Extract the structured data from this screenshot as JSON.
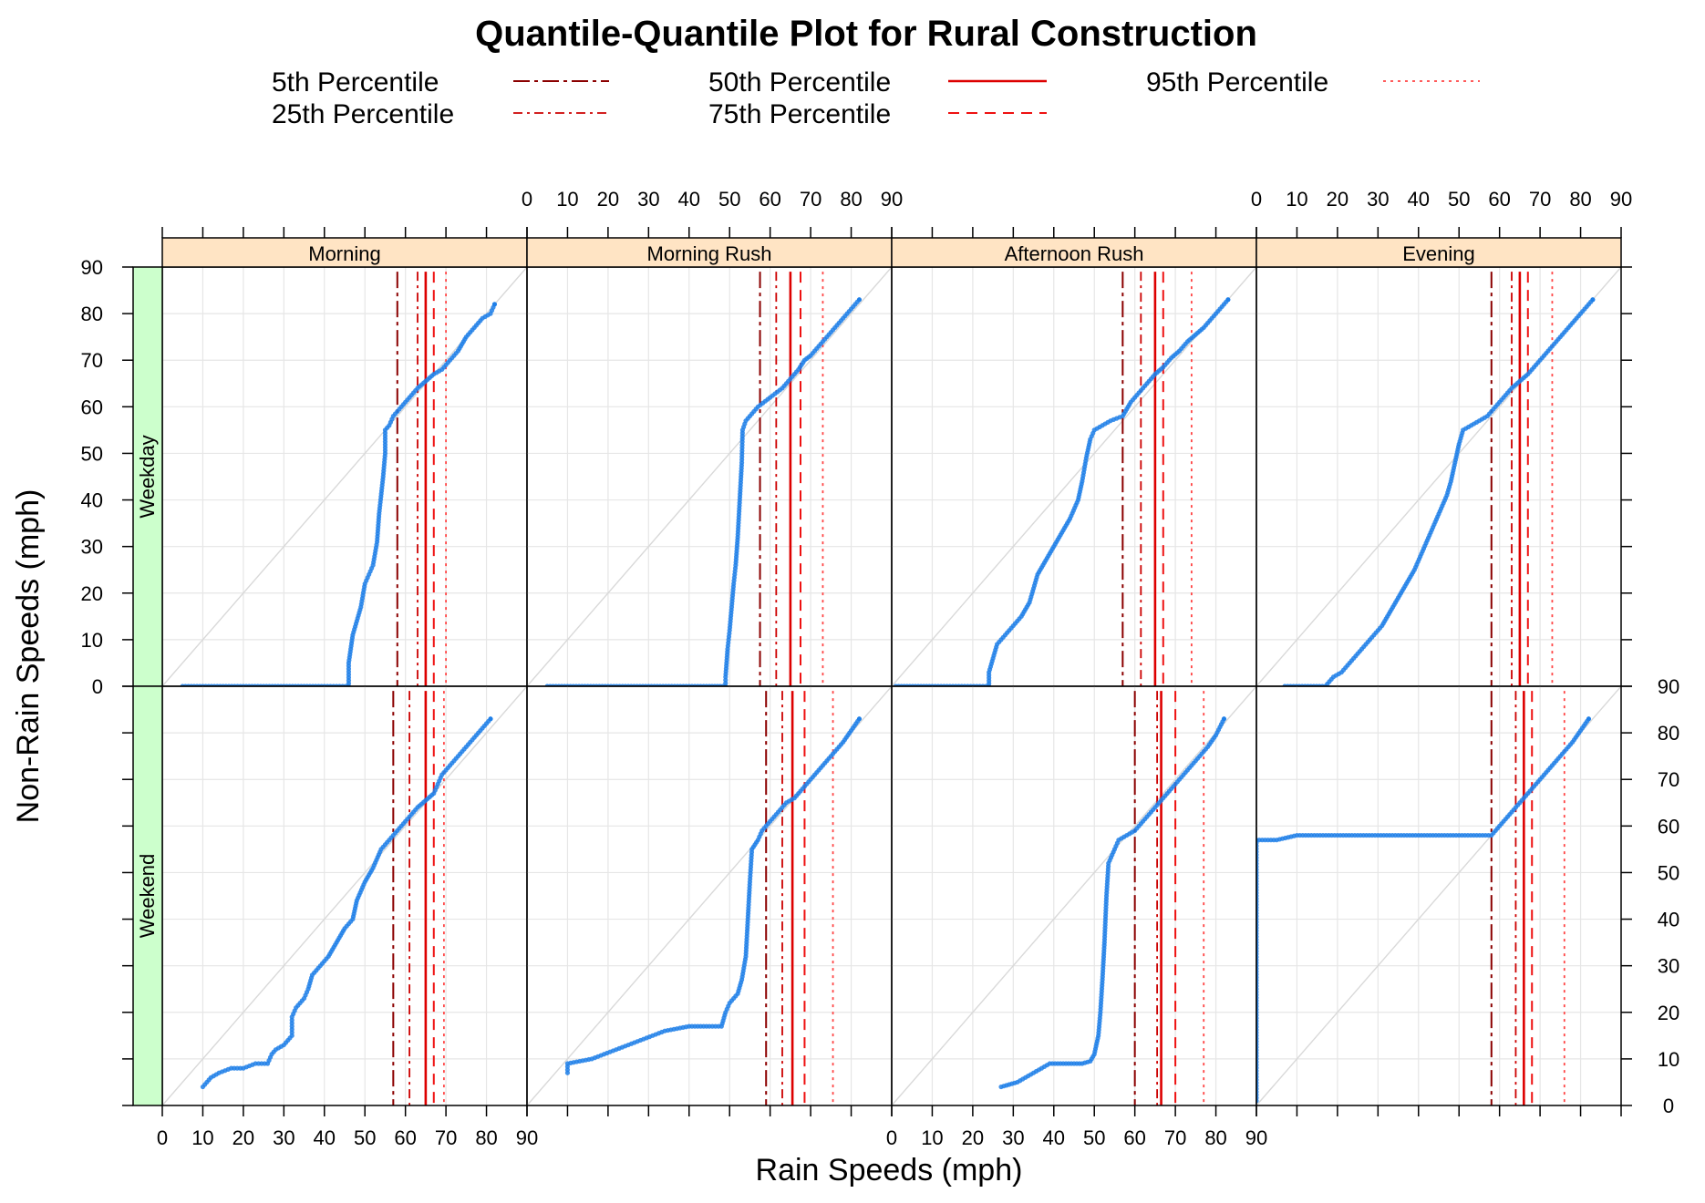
{
  "chart_data": {
    "type": "scatter",
    "title": "Quantile-Quantile Plot for Rural Construction",
    "xlabel": "Rain Speeds (mph)",
    "ylabel": "Non-Rain Speeds (mph)",
    "xlim": [
      0,
      90
    ],
    "ylim": [
      0,
      90
    ],
    "ticks": [
      0,
      10,
      20,
      30,
      40,
      50,
      60,
      70,
      80,
      90
    ],
    "grid": true,
    "reference_line": "y = x",
    "colors": {
      "points": "#1E7FE8",
      "percentile_lines": "#CC0000",
      "strip_column": "#FFE4C4",
      "strip_row": "#CCFFCC",
      "grid": "#E6E6E6",
      "diagonal": "#D9D9D9"
    },
    "legend": {
      "position": "top",
      "entries": [
        {
          "label": "5th Percentile",
          "style": "dashdot-long",
          "color": "#8B0000"
        },
        {
          "label": "25th Percentile",
          "style": "dashdot",
          "color": "#CC0000"
        },
        {
          "label": "50th Percentile",
          "style": "solid",
          "color": "#DD0000"
        },
        {
          "label": "75th Percentile",
          "style": "dashed",
          "color": "#EE1111"
        },
        {
          "label": "95th Percentile",
          "style": "dotted",
          "color": "#FF4444"
        }
      ]
    },
    "columns": [
      "Morning",
      "Morning Rush",
      "Afternoon Rush",
      "Evening"
    ],
    "rows": [
      "Weekday",
      "Weekend"
    ],
    "panels": [
      {
        "column": "Morning",
        "row": "Weekday",
        "percentiles": [
          58,
          63,
          65,
          67,
          70
        ],
        "points": [
          [
            5,
            0
          ],
          [
            10,
            0
          ],
          [
            15,
            0
          ],
          [
            20,
            0
          ],
          [
            25,
            0
          ],
          [
            30,
            0
          ],
          [
            35,
            0
          ],
          [
            40,
            0
          ],
          [
            46,
            0
          ],
          [
            46,
            5
          ],
          [
            46.5,
            8
          ],
          [
            47,
            11
          ],
          [
            48,
            14
          ],
          [
            49,
            17
          ],
          [
            50,
            22
          ],
          [
            51,
            24
          ],
          [
            52,
            26
          ],
          [
            53,
            31
          ],
          [
            53.5,
            37
          ],
          [
            54.5,
            45
          ],
          [
            55,
            50
          ],
          [
            55,
            55
          ],
          [
            56,
            56
          ],
          [
            57,
            58
          ],
          [
            59,
            60
          ],
          [
            61,
            62
          ],
          [
            63,
            64
          ],
          [
            65,
            65.5
          ],
          [
            67,
            67
          ],
          [
            69,
            68
          ],
          [
            71,
            70
          ],
          [
            73,
            72
          ],
          [
            75,
            75
          ],
          [
            77,
            77
          ],
          [
            79,
            79
          ],
          [
            81,
            80
          ],
          [
            82,
            82
          ]
        ]
      },
      {
        "column": "Morning Rush",
        "row": "Weekday",
        "percentiles": [
          57.5,
          61.5,
          65,
          67.5,
          73
        ],
        "points": [
          [
            5,
            0
          ],
          [
            15,
            0
          ],
          [
            25,
            0
          ],
          [
            35,
            0
          ],
          [
            45,
            0
          ],
          [
            49,
            0
          ],
          [
            49,
            2
          ],
          [
            49.5,
            8
          ],
          [
            50,
            12
          ],
          [
            50.5,
            17
          ],
          [
            51,
            22
          ],
          [
            51.5,
            26
          ],
          [
            52,
            32
          ],
          [
            52.5,
            40
          ],
          [
            53,
            48
          ],
          [
            53.2,
            55
          ],
          [
            54,
            57
          ],
          [
            55,
            58
          ],
          [
            57,
            60
          ],
          [
            60,
            62
          ],
          [
            63,
            64
          ],
          [
            65,
            66
          ],
          [
            67,
            68
          ],
          [
            68.5,
            70
          ],
          [
            70,
            71
          ],
          [
            72,
            73
          ],
          [
            74,
            75
          ],
          [
            76,
            77
          ],
          [
            78,
            79
          ],
          [
            80,
            81
          ],
          [
            82,
            83
          ]
        ]
      },
      {
        "column": "Afternoon Rush",
        "row": "Weekday",
        "percentiles": [
          57,
          61.5,
          65,
          67,
          74
        ],
        "points": [
          [
            1,
            0
          ],
          [
            10,
            0
          ],
          [
            18,
            0
          ],
          [
            24,
            0
          ],
          [
            24,
            3
          ],
          [
            25,
            6
          ],
          [
            26,
            9
          ],
          [
            28,
            11
          ],
          [
            30,
            13
          ],
          [
            32,
            15
          ],
          [
            34,
            18
          ],
          [
            35,
            21
          ],
          [
            36,
            24
          ],
          [
            38,
            27
          ],
          [
            40,
            30
          ],
          [
            42,
            33
          ],
          [
            44,
            36
          ],
          [
            46,
            40
          ],
          [
            47,
            44
          ],
          [
            48,
            49
          ],
          [
            49,
            53
          ],
          [
            50,
            55
          ],
          [
            52,
            56
          ],
          [
            54,
            57
          ],
          [
            57,
            58
          ],
          [
            59,
            61
          ],
          [
            61,
            63
          ],
          [
            63,
            65
          ],
          [
            65,
            67
          ],
          [
            67,
            68.5
          ],
          [
            69,
            70.5
          ],
          [
            71,
            72
          ],
          [
            73,
            74
          ],
          [
            75,
            75.5
          ],
          [
            77,
            77
          ],
          [
            79,
            79
          ],
          [
            81,
            81
          ],
          [
            83,
            83
          ]
        ]
      },
      {
        "column": "Evening",
        "row": "Weekday",
        "percentiles": [
          58,
          63,
          65,
          67,
          73
        ],
        "points": [
          [
            7,
            0
          ],
          [
            12,
            0
          ],
          [
            17,
            0
          ],
          [
            18,
            1
          ],
          [
            19,
            2
          ],
          [
            21,
            3
          ],
          [
            23,
            5
          ],
          [
            25,
            7
          ],
          [
            27,
            9
          ],
          [
            29,
            11
          ],
          [
            31,
            13
          ],
          [
            33,
            16
          ],
          [
            35,
            19
          ],
          [
            37,
            22
          ],
          [
            39,
            25
          ],
          [
            41,
            29
          ],
          [
            43,
            33
          ],
          [
            45,
            37
          ],
          [
            47,
            41
          ],
          [
            48,
            44
          ],
          [
            49,
            48
          ],
          [
            50,
            52
          ],
          [
            51,
            55
          ],
          [
            53,
            56
          ],
          [
            55,
            57
          ],
          [
            57,
            58
          ],
          [
            59,
            60
          ],
          [
            61,
            62
          ],
          [
            63,
            64
          ],
          [
            65,
            65.5
          ],
          [
            67,
            67
          ],
          [
            69,
            69
          ],
          [
            71,
            71
          ],
          [
            73,
            73
          ],
          [
            75,
            75
          ],
          [
            77,
            77
          ],
          [
            79,
            79
          ],
          [
            81,
            81
          ],
          [
            83,
            83
          ]
        ]
      },
      {
        "column": "Morning",
        "row": "Weekend",
        "percentiles": [
          57,
          61,
          65,
          67,
          69.5
        ],
        "points": [
          [
            10,
            4
          ],
          [
            11,
            5
          ],
          [
            12,
            6
          ],
          [
            14,
            7
          ],
          [
            17,
            8
          ],
          [
            20,
            8
          ],
          [
            23,
            9
          ],
          [
            26,
            9
          ],
          [
            27,
            11
          ],
          [
            28,
            12
          ],
          [
            30,
            13
          ],
          [
            32,
            15
          ],
          [
            32,
            19
          ],
          [
            33,
            21
          ],
          [
            35,
            23
          ],
          [
            36,
            25
          ],
          [
            37,
            28
          ],
          [
            39,
            30
          ],
          [
            41,
            32
          ],
          [
            43,
            35
          ],
          [
            45,
            38
          ],
          [
            47,
            40
          ],
          [
            48,
            44
          ],
          [
            50,
            48
          ],
          [
            52,
            51
          ],
          [
            54,
            55
          ],
          [
            56,
            57
          ],
          [
            59,
            60
          ],
          [
            61,
            62
          ],
          [
            63,
            64
          ],
          [
            65,
            65.5
          ],
          [
            67,
            67
          ],
          [
            68,
            69
          ],
          [
            69,
            71
          ],
          [
            71,
            73
          ],
          [
            73,
            75
          ],
          [
            75,
            77
          ],
          [
            77,
            79
          ],
          [
            79,
            81
          ],
          [
            81,
            83
          ]
        ]
      },
      {
        "column": "Morning Rush",
        "row": "Weekend",
        "percentiles": [
          59,
          63,
          65.5,
          68.5,
          75.5
        ],
        "points": [
          [
            10,
            7
          ],
          [
            10,
            9
          ],
          [
            13,
            9.5
          ],
          [
            16,
            10
          ],
          [
            19,
            11
          ],
          [
            22,
            12
          ],
          [
            25,
            13
          ],
          [
            28,
            14
          ],
          [
            31,
            15
          ],
          [
            34,
            16
          ],
          [
            37,
            16.5
          ],
          [
            40,
            17
          ],
          [
            45,
            17
          ],
          [
            48,
            17
          ],
          [
            49,
            20
          ],
          [
            50,
            22
          ],
          [
            52,
            24
          ],
          [
            53,
            27
          ],
          [
            54,
            32
          ],
          [
            54.5,
            40
          ],
          [
            55,
            48
          ],
          [
            55.5,
            55
          ],
          [
            57,
            57
          ],
          [
            58,
            59
          ],
          [
            60,
            61
          ],
          [
            62,
            63
          ],
          [
            64,
            65
          ],
          [
            66,
            66
          ],
          [
            68,
            68
          ],
          [
            70,
            70
          ],
          [
            72,
            72
          ],
          [
            74,
            74
          ],
          [
            76,
            76
          ],
          [
            78,
            78
          ],
          [
            80,
            80.5
          ],
          [
            82,
            83
          ]
        ]
      },
      {
        "column": "Afternoon Rush",
        "row": "Weekend",
        "percentiles": [
          60,
          65.5,
          66.5,
          70,
          77
        ],
        "points": [
          [
            27,
            4
          ],
          [
            29,
            4.5
          ],
          [
            31,
            5
          ],
          [
            33,
            6
          ],
          [
            35,
            7
          ],
          [
            37,
            8
          ],
          [
            39,
            9
          ],
          [
            41,
            9
          ],
          [
            43,
            9
          ],
          [
            45,
            9
          ],
          [
            47,
            9
          ],
          [
            49,
            9.5
          ],
          [
            50,
            11
          ],
          [
            51,
            15
          ],
          [
            51.5,
            20
          ],
          [
            52,
            27
          ],
          [
            52.5,
            35
          ],
          [
            53,
            45
          ],
          [
            53.5,
            52
          ],
          [
            55,
            55
          ],
          [
            56,
            57
          ],
          [
            58,
            58
          ],
          [
            60,
            59
          ],
          [
            62,
            61
          ],
          [
            64,
            63
          ],
          [
            66,
            65
          ],
          [
            68,
            67
          ],
          [
            70,
            69
          ],
          [
            72,
            71
          ],
          [
            74,
            73
          ],
          [
            76,
            75
          ],
          [
            78,
            77
          ],
          [
            80,
            79.5
          ],
          [
            82,
            83
          ]
        ]
      },
      {
        "column": "Evening",
        "row": "Weekend",
        "percentiles": [
          58,
          64,
          66,
          68,
          76
        ],
        "points": [
          [
            0,
            1
          ],
          [
            0,
            10
          ],
          [
            0,
            20
          ],
          [
            0,
            30
          ],
          [
            0,
            40
          ],
          [
            0,
            50
          ],
          [
            0,
            57
          ],
          [
            5,
            57
          ],
          [
            10,
            58
          ],
          [
            20,
            58
          ],
          [
            30,
            58
          ],
          [
            40,
            58
          ],
          [
            50,
            58
          ],
          [
            58,
            58
          ],
          [
            60,
            60
          ],
          [
            62,
            62
          ],
          [
            64,
            64
          ],
          [
            66,
            66
          ],
          [
            68,
            68
          ],
          [
            70,
            70
          ],
          [
            72,
            72
          ],
          [
            74,
            74
          ],
          [
            76,
            76
          ],
          [
            78,
            78
          ],
          [
            80,
            80.5
          ],
          [
            82,
            83
          ]
        ]
      }
    ]
  }
}
